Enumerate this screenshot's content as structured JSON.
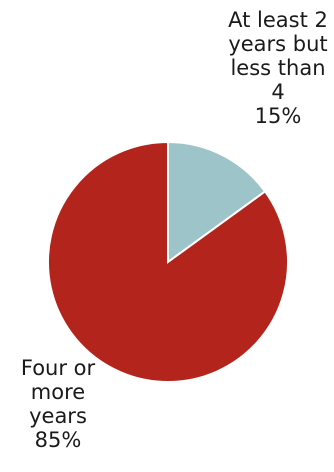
{
  "chart_data": {
    "type": "pie",
    "slices": [
      {
        "label": "At least 2 years but less than 4",
        "value": 15,
        "display": "15%",
        "color": "#9dc4c8"
      },
      {
        "label": "Four or more years",
        "value": 85,
        "display": "85%",
        "color": "#b3241c"
      }
    ],
    "legend": false
  }
}
